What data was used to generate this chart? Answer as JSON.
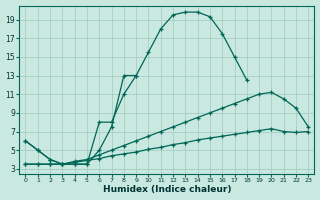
{
  "xlabel": "Humidex (Indice chaleur)",
  "bg_color": "#c8e8e0",
  "grid_color": "#a0c8c0",
  "line_color": "#006655",
  "ylim": [
    2.5,
    20.5
  ],
  "xlim": [
    -0.5,
    23.5
  ],
  "yticks": [
    3,
    5,
    7,
    9,
    11,
    13,
    15,
    17,
    19
  ],
  "xticks": [
    0,
    1,
    2,
    3,
    4,
    5,
    6,
    7,
    8,
    9,
    10,
    11,
    12,
    13,
    14,
    15,
    16,
    17,
    18,
    19,
    20,
    21,
    22,
    23
  ],
  "line1_x": [
    0,
    1,
    2,
    3,
    4,
    5,
    6,
    7,
    8,
    9,
    10,
    11,
    12,
    13,
    14,
    15,
    16,
    17,
    18
  ],
  "line1_y": [
    6.0,
    5.0,
    4.0,
    3.5,
    3.5,
    3.5,
    8.0,
    8.0,
    11.0,
    13.0,
    15.5,
    18.0,
    19.5,
    19.8,
    19.8,
    19.3,
    17.5,
    15.0,
    12.5
  ],
  "line2_x": [
    0,
    1,
    2,
    3,
    4,
    5,
    6,
    7,
    8,
    9
  ],
  "line2_y": [
    6.0,
    5.0,
    4.0,
    3.5,
    3.5,
    3.5,
    5.0,
    7.5,
    13.0,
    13.0
  ],
  "line3_x": [
    0,
    1,
    2,
    3,
    4,
    5,
    6,
    7,
    8,
    9,
    10,
    11,
    12,
    13,
    14,
    15,
    16,
    17,
    18,
    19,
    20,
    21,
    22,
    23
  ],
  "line3_y": [
    3.5,
    3.5,
    3.5,
    3.5,
    3.8,
    4.0,
    4.5,
    5.0,
    5.5,
    6.0,
    6.5,
    7.0,
    7.5,
    8.0,
    8.5,
    9.0,
    9.5,
    10.0,
    10.5,
    11.0,
    11.2,
    10.5,
    9.5,
    7.5
  ],
  "line4_x": [
    0,
    1,
    2,
    3,
    4,
    5,
    6,
    7,
    8,
    9,
    10,
    11,
    12,
    13,
    14,
    15,
    16,
    17,
    18,
    19,
    20,
    21,
    22,
    23
  ],
  "line4_y": [
    3.5,
    3.5,
    3.5,
    3.5,
    3.7,
    3.9,
    4.1,
    4.4,
    4.6,
    4.8,
    5.1,
    5.3,
    5.6,
    5.8,
    6.1,
    6.3,
    6.5,
    6.7,
    6.9,
    7.1,
    7.3,
    7.0,
    6.9,
    7.0
  ]
}
